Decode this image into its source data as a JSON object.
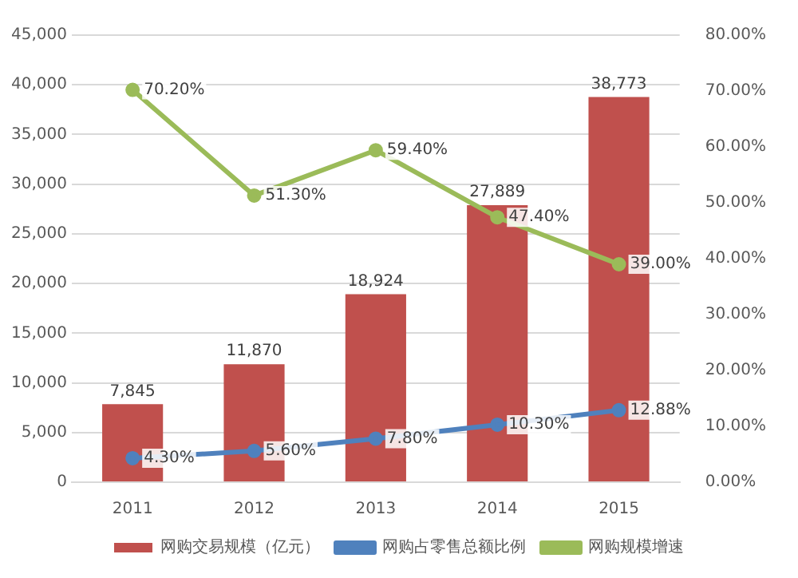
{
  "chart_data": {
    "type": "bar",
    "categories": [
      "2011",
      "2012",
      "2013",
      "2014",
      "2015"
    ],
    "series": [
      {
        "name": "网购交易规模（亿元）",
        "color": "#c0504d",
        "values": [
          7845,
          11870,
          18924,
          27889,
          38773
        ],
        "value_labels": [
          "7,845",
          "11,870",
          "18,924",
          "27,889",
          "38,773"
        ]
      },
      {
        "name": "网购占零售总额比例",
        "type": "line",
        "axis": "y2",
        "color": "#4f81bd",
        "values": [
          4.3,
          5.6,
          7.8,
          10.3,
          12.88
        ],
        "value_labels": [
          "4.30%",
          "5.60%",
          "7.80%",
          "10.30%",
          "12.88%"
        ]
      },
      {
        "name": "网购规模增速",
        "type": "line",
        "axis": "y2",
        "color": "#9bbb59",
        "values": [
          70.2,
          51.3,
          59.4,
          47.4,
          39.0
        ],
        "value_labels": [
          "70.20%",
          "51.30%",
          "59.40%",
          "47.40%",
          "39.00%"
        ]
      }
    ],
    "ylim": [
      0,
      45000
    ],
    "yticks": [
      {
        "value": 0,
        "label": "0"
      },
      {
        "value": 5000,
        "label": "5,000"
      },
      {
        "value": 10000,
        "label": "10,000"
      },
      {
        "value": 15000,
        "label": "15,000"
      },
      {
        "value": 20000,
        "label": "20,000"
      },
      {
        "value": 25000,
        "label": "25,000"
      },
      {
        "value": 30000,
        "label": "30,000"
      },
      {
        "value": 35000,
        "label": "35,000"
      },
      {
        "value": 40000,
        "label": "40,000"
      },
      {
        "value": 45000,
        "label": "45,000"
      }
    ],
    "y2lim": [
      0,
      80
    ],
    "y2ticks": [
      {
        "value": 0,
        "label": "0.00%"
      },
      {
        "value": 10,
        "label": "10.00%"
      },
      {
        "value": 20,
        "label": "20.00%"
      },
      {
        "value": 30,
        "label": "30.00%"
      },
      {
        "value": 40,
        "label": "40.00%"
      },
      {
        "value": 50,
        "label": "50.00%"
      },
      {
        "value": 60,
        "label": "60.00%"
      },
      {
        "value": 70,
        "label": "70.00%"
      },
      {
        "value": 80,
        "label": "80.00%"
      }
    ],
    "grid": "y",
    "legend": "bottom",
    "marker": "circle",
    "line_style": "solid"
  }
}
